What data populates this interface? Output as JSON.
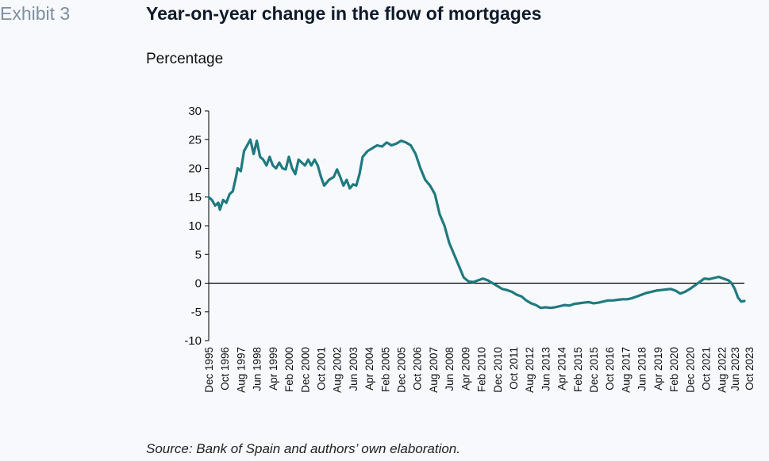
{
  "header": {
    "exhibit": "Exhibit 3",
    "title": "Year-on-year change in the flow of mortgages"
  },
  "footer": {
    "source": "Source: Bank of Spain and authors’ own elaboration."
  },
  "colors": {
    "series": "#1f7a80",
    "axis": "#000000",
    "background": "#f7f9fc"
  },
  "chart_data": {
    "type": "line",
    "ylabel": "Percentage",
    "ylim": [
      -10,
      30
    ],
    "yticks": [
      30,
      25,
      20,
      15,
      10,
      5,
      0,
      -5,
      -10
    ],
    "xlim": [
      "1995-12",
      "2023-10"
    ],
    "xticks": [
      "Dec 1995",
      "Oct 1996",
      "Aug 1997",
      "Jun 1998",
      "Apr 1999",
      "Feb 2000",
      "Dec 2000",
      "Oct 2001",
      "Aug 2002",
      "Jun 2003",
      "Apr 2004",
      "Feb 2005",
      "Dec 2005",
      "Oct 2006",
      "Aug 2007",
      "Jun 2008",
      "Apr 2009",
      "Feb 2010",
      "Dec 2010",
      "Oct 2011",
      "Aug 2012",
      "Jun 2013",
      "Apr 2014",
      "Feb 2015",
      "Dec 2015",
      "Oct 2016",
      "Aug 2017",
      "Jun 2018",
      "Apr 2019",
      "Feb 2020",
      "Dec 2020",
      "Oct 2021",
      "Aug 2022",
      "Jun 2023",
      "Oct 2023"
    ],
    "grid": false,
    "series": [
      {
        "points": [
          [
            "1995-12",
            15
          ],
          [
            "1996-02",
            14.5
          ],
          [
            "1996-04",
            13.5
          ],
          [
            "1996-06",
            14
          ],
          [
            "1996-07",
            12.8
          ],
          [
            "1996-09",
            14.5
          ],
          [
            "1996-11",
            14
          ],
          [
            "1997-01",
            15.5
          ],
          [
            "1997-03",
            16
          ],
          [
            "1997-05",
            18.5
          ],
          [
            "1997-06",
            20
          ],
          [
            "1997-08",
            19.5
          ],
          [
            "1997-10",
            23
          ],
          [
            "1997-12",
            24
          ],
          [
            "1998-02",
            25
          ],
          [
            "1998-04",
            22.5
          ],
          [
            "1998-06",
            24.8
          ],
          [
            "1998-08",
            22
          ],
          [
            "1998-10",
            21.5
          ],
          [
            "1998-12",
            20.5
          ],
          [
            "1999-02",
            22
          ],
          [
            "1999-04",
            20.5
          ],
          [
            "1999-06",
            20
          ],
          [
            "1999-08",
            21
          ],
          [
            "1999-10",
            20
          ],
          [
            "1999-12",
            19.8
          ],
          [
            "2000-02",
            22
          ],
          [
            "2000-04",
            20
          ],
          [
            "2000-06",
            19
          ],
          [
            "2000-08",
            21.5
          ],
          [
            "2000-10",
            21
          ],
          [
            "2000-12",
            20.5
          ],
          [
            "2001-02",
            21.5
          ],
          [
            "2001-04",
            20.5
          ],
          [
            "2001-06",
            21.5
          ],
          [
            "2001-08",
            20.5
          ],
          [
            "2001-10",
            18.5
          ],
          [
            "2001-12",
            17
          ],
          [
            "2002-03",
            18
          ],
          [
            "2002-06",
            18.5
          ],
          [
            "2002-08",
            19.8
          ],
          [
            "2002-10",
            18.5
          ],
          [
            "2002-12",
            17
          ],
          [
            "2003-02",
            18
          ],
          [
            "2003-04",
            16.5
          ],
          [
            "2003-06",
            17.2
          ],
          [
            "2003-08",
            17
          ],
          [
            "2003-10",
            19
          ],
          [
            "2003-12",
            22
          ],
          [
            "2004-03",
            23
          ],
          [
            "2004-06",
            23.5
          ],
          [
            "2004-09",
            24
          ],
          [
            "2004-12",
            23.8
          ],
          [
            "2005-03",
            24.5
          ],
          [
            "2005-06",
            24
          ],
          [
            "2005-09",
            24.3
          ],
          [
            "2005-12",
            24.8
          ],
          [
            "2006-03",
            24.5
          ],
          [
            "2006-06",
            24
          ],
          [
            "2006-09",
            22.5
          ],
          [
            "2006-12",
            20
          ],
          [
            "2007-03",
            18
          ],
          [
            "2007-06",
            17
          ],
          [
            "2007-09",
            15.5
          ],
          [
            "2007-12",
            12
          ],
          [
            "2008-03",
            10
          ],
          [
            "2008-06",
            7
          ],
          [
            "2008-09",
            5
          ],
          [
            "2008-12",
            3
          ],
          [
            "2009-03",
            1
          ],
          [
            "2009-06",
            0.3
          ],
          [
            "2009-09",
            0.2
          ],
          [
            "2009-12",
            0.5
          ],
          [
            "2010-03",
            0.8
          ],
          [
            "2010-06",
            0.5
          ],
          [
            "2010-09",
            0
          ],
          [
            "2010-12",
            -0.5
          ],
          [
            "2011-03",
            -1
          ],
          [
            "2011-06",
            -1.2
          ],
          [
            "2011-09",
            -1.5
          ],
          [
            "2011-12",
            -2
          ],
          [
            "2012-03",
            -2.3
          ],
          [
            "2012-06",
            -3
          ],
          [
            "2012-09",
            -3.5
          ],
          [
            "2012-12",
            -3.8
          ],
          [
            "2013-03",
            -4.3
          ],
          [
            "2013-06",
            -4.2
          ],
          [
            "2013-09",
            -4.3
          ],
          [
            "2013-12",
            -4.2
          ],
          [
            "2014-03",
            -4
          ],
          [
            "2014-06",
            -3.8
          ],
          [
            "2014-09",
            -3.9
          ],
          [
            "2014-12",
            -3.6
          ],
          [
            "2015-03",
            -3.5
          ],
          [
            "2015-06",
            -3.4
          ],
          [
            "2015-09",
            -3.3
          ],
          [
            "2015-12",
            -3.5
          ],
          [
            "2016-03",
            -3.4
          ],
          [
            "2016-06",
            -3.2
          ],
          [
            "2016-09",
            -3
          ],
          [
            "2016-12",
            -3
          ],
          [
            "2017-03",
            -2.9
          ],
          [
            "2017-06",
            -2.8
          ],
          [
            "2017-09",
            -2.8
          ],
          [
            "2017-12",
            -2.6
          ],
          [
            "2018-03",
            -2.3
          ],
          [
            "2018-06",
            -2
          ],
          [
            "2018-09",
            -1.7
          ],
          [
            "2018-12",
            -1.5
          ],
          [
            "2019-03",
            -1.3
          ],
          [
            "2019-06",
            -1.2
          ],
          [
            "2019-09",
            -1.1
          ],
          [
            "2019-12",
            -1
          ],
          [
            "2020-03",
            -1.3
          ],
          [
            "2020-06",
            -1.8
          ],
          [
            "2020-09",
            -1.5
          ],
          [
            "2020-12",
            -1
          ],
          [
            "2021-03",
            -0.4
          ],
          [
            "2021-06",
            0.2
          ],
          [
            "2021-09",
            0.8
          ],
          [
            "2021-12",
            0.7
          ],
          [
            "2022-03",
            0.9
          ],
          [
            "2022-06",
            1.1
          ],
          [
            "2022-09",
            0.8
          ],
          [
            "2022-12",
            0.5
          ],
          [
            "2023-02",
            0
          ],
          [
            "2023-04",
            -1
          ],
          [
            "2023-06",
            -2.5
          ],
          [
            "2023-08",
            -3.2
          ],
          [
            "2023-10",
            -3.1
          ]
        ]
      }
    ]
  }
}
